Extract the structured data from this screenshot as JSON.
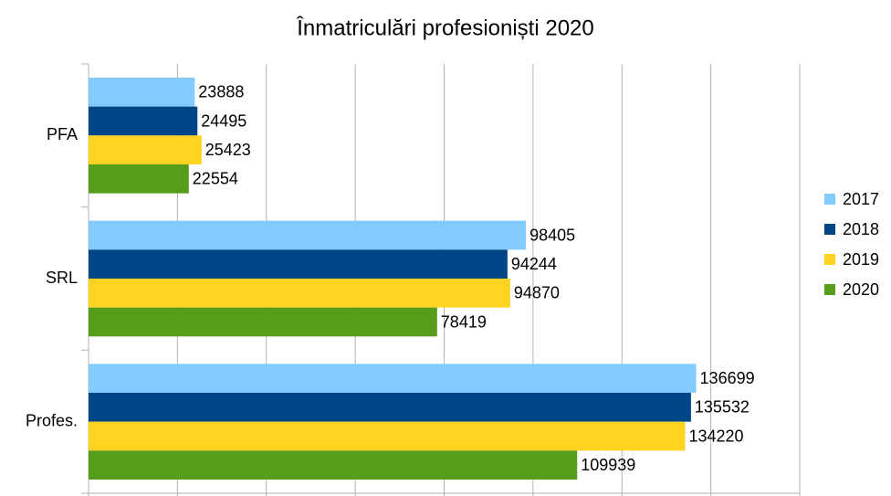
{
  "chart_data": {
    "type": "hbar",
    "title": "Înmatriculări profesioniști 2020",
    "categories": [
      "PFA",
      "SRL",
      "Profes."
    ],
    "series": [
      {
        "name": "2017",
        "color": "#83caff",
        "values": [
          23888,
          98405,
          136699
        ]
      },
      {
        "name": "2018",
        "color": "#004586",
        "values": [
          24495,
          94244,
          135532
        ]
      },
      {
        "name": "2019",
        "color": "#ffd320",
        "values": [
          25423,
          94870,
          134220
        ]
      },
      {
        "name": "2020",
        "color": "#579d1c",
        "values": [
          22554,
          78419,
          109939
        ]
      }
    ],
    "xlim": [
      0,
      160000
    ],
    "xticks": [
      0,
      20000,
      40000,
      60000,
      80000,
      100000,
      120000,
      140000,
      160000
    ],
    "grid": true,
    "legend": "right"
  }
}
